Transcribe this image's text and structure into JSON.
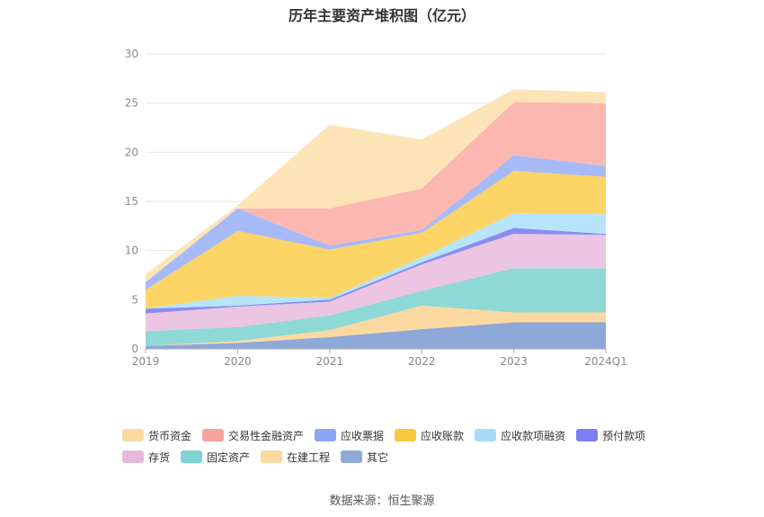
{
  "title": "历年主要资产堆积图（亿元）",
  "source": "数据来源：恒生聚源",
  "chart_data": {
    "type": "area",
    "stacked": true,
    "categories": [
      "2019",
      "2020",
      "2021",
      "2022",
      "2023",
      "2024Q1"
    ],
    "ylim": [
      0,
      30
    ],
    "yticks": [
      0,
      5,
      10,
      15,
      20,
      25,
      30
    ],
    "grid": true,
    "legend_position": "bottom",
    "series": [
      {
        "name": "其它",
        "color": "#8ea8d8",
        "values": [
          0.3,
          0.6,
          1.2,
          2.0,
          2.7,
          2.7
        ]
      },
      {
        "name": "在建工程",
        "color": "#fcd9a0",
        "values": [
          0.0,
          0.2,
          0.7,
          2.4,
          1.0,
          1.0
        ]
      },
      {
        "name": "固定资产",
        "color": "#8ed8d6",
        "values": [
          1.5,
          1.4,
          1.5,
          1.5,
          4.5,
          4.5
        ]
      },
      {
        "name": "存货",
        "color": "#ebc5e2",
        "values": [
          1.8,
          2.1,
          1.4,
          2.7,
          3.5,
          3.4
        ]
      },
      {
        "name": "预付款项",
        "color": "#8a8cf0",
        "values": [
          0.5,
          0.1,
          0.2,
          0.2,
          0.6,
          0.1
        ]
      },
      {
        "name": "应收款项融资",
        "color": "#b6e4fa",
        "values": [
          0.0,
          1.0,
          0.2,
          0.5,
          1.5,
          2.0
        ]
      },
      {
        "name": "应收账款",
        "color": "#fdd466",
        "values": [
          1.9,
          6.6,
          4.9,
          2.5,
          4.3,
          3.8
        ]
      },
      {
        "name": "应收票据",
        "color": "#a7baf8",
        "values": [
          0.8,
          2.3,
          0.4,
          0.3,
          1.6,
          1.1
        ]
      },
      {
        "name": "交易性金融资产",
        "color": "#fcb8b0",
        "values": [
          0.0,
          0.0,
          3.8,
          4.2,
          5.4,
          6.4
        ]
      },
      {
        "name": "货币资金",
        "color": "#fde4b7",
        "values": [
          0.8,
          0.3,
          8.5,
          5.0,
          1.3,
          1.1
        ]
      }
    ]
  },
  "legend": {
    "rows": [
      [
        {
          "label": "货币资金",
          "color": "#fcd9a0"
        },
        {
          "label": "交易性金融资产",
          "color": "#f8a39a"
        },
        {
          "label": "应收票据",
          "color": "#8aa6f5"
        },
        {
          "label": "应收账款",
          "color": "#fbc73f"
        },
        {
          "label": "应收款项融资",
          "color": "#a6dcf7"
        },
        {
          "label": "预付款项",
          "color": "#7b7ff0"
        }
      ],
      [
        {
          "label": "存货",
          "color": "#e8b8dc"
        },
        {
          "label": "固定资产",
          "color": "#7dd3d0"
        },
        {
          "label": "在建工程",
          "color": "#fcd9a0"
        },
        {
          "label": "其它",
          "color": "#8ea8d8"
        }
      ]
    ]
  }
}
